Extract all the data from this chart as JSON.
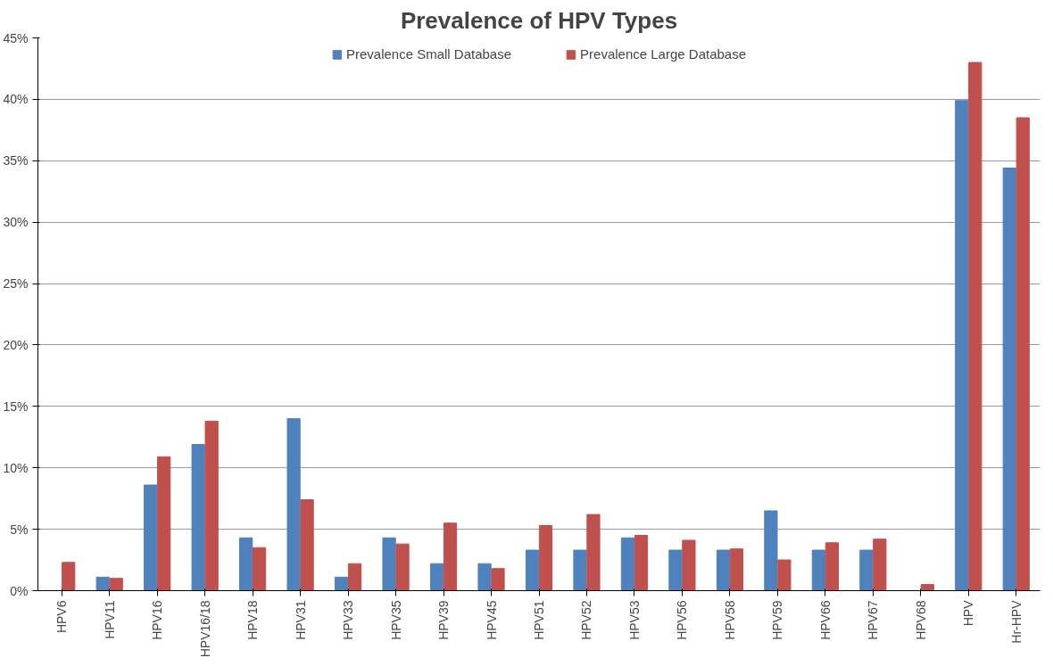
{
  "chart_data": {
    "type": "bar",
    "title": "Prevalence of HPV Types",
    "categories": [
      "HPV6",
      "HPV11",
      "HPV16",
      "HPV16/18",
      "HPV18",
      "HPV31",
      "HPV33",
      "HPV35",
      "HPV39",
      "HPV45",
      "HPV51",
      "HPV52",
      "HPV53",
      "HPV56",
      "HPV58",
      "HPV59",
      "HPV66",
      "HPV67",
      "HPV68",
      "HPV",
      "Hr-HPV"
    ],
    "series": [
      {
        "name": "Prevalence Small Database",
        "color": "#4f81bd",
        "values": [
          0,
          1.1,
          8.6,
          11.9,
          4.3,
          14.0,
          1.1,
          4.3,
          2.2,
          2.2,
          3.3,
          3.3,
          4.3,
          3.3,
          3.3,
          6.5,
          3.3,
          3.3,
          0,
          39.9,
          34.4
        ]
      },
      {
        "name": "Prevalence Large Database",
        "color": "#c0504d",
        "values": [
          2.3,
          1.0,
          10.9,
          13.8,
          3.5,
          7.4,
          2.2,
          3.8,
          5.5,
          1.8,
          5.3,
          6.2,
          4.5,
          4.1,
          3.4,
          2.5,
          3.9,
          4.2,
          0.5,
          43.0,
          38.5
        ]
      }
    ],
    "ylim": [
      0,
      45
    ],
    "yticks": [
      {
        "value": 0,
        "label": "0%"
      },
      {
        "value": 5,
        "label": "5%"
      },
      {
        "value": 10,
        "label": "10%"
      },
      {
        "value": 15,
        "label": "15%"
      },
      {
        "value": 20,
        "label": "20%"
      },
      {
        "value": 25,
        "label": "25%"
      },
      {
        "value": 30,
        "label": "30%"
      },
      {
        "value": 35,
        "label": "35%"
      },
      {
        "value": 40,
        "label": "40%"
      },
      {
        "value": 45,
        "label": "45%"
      }
    ],
    "grid": "y",
    "legend": "top"
  }
}
